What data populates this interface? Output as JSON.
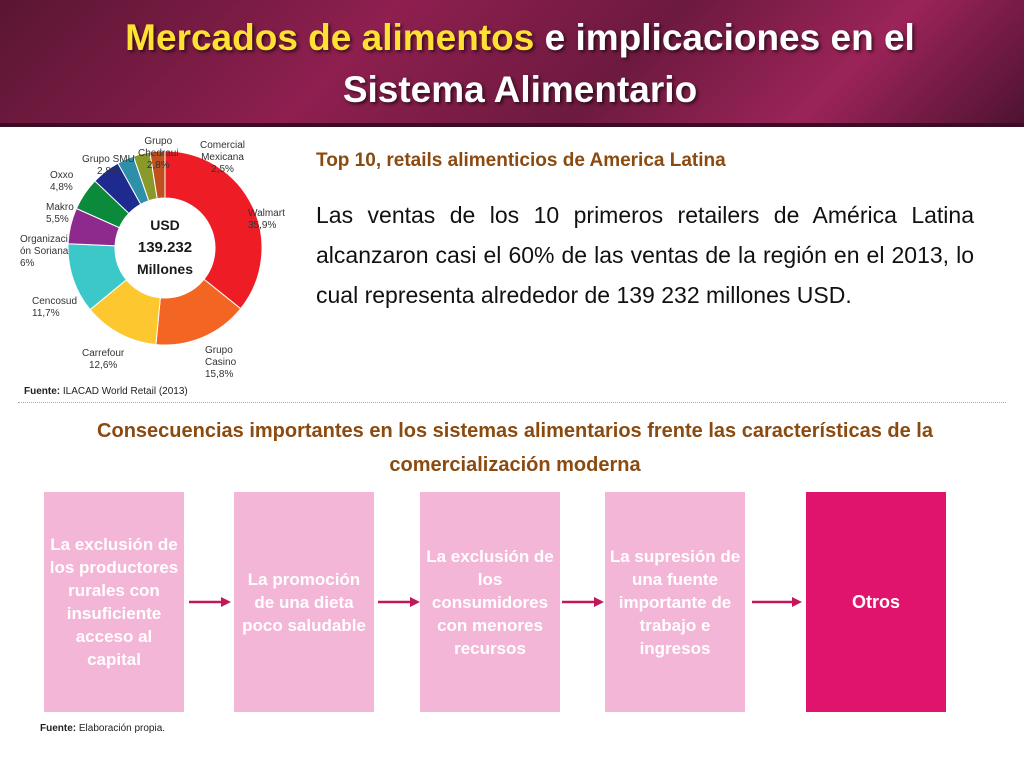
{
  "title": {
    "highlight": "Mercados de alimentos",
    "rest": " e implicaciones en el Sistema Alimentario"
  },
  "chart_data": {
    "type": "pie",
    "center_label": [
      "USD",
      "139.232",
      "Millones"
    ],
    "slices": [
      {
        "name": "Walmart",
        "value": 35.9,
        "label": "35,9%",
        "color": "#ee1c25"
      },
      {
        "name": "Grupo Casino",
        "value": 15.8,
        "label": "15,8%",
        "color": "#f26522"
      },
      {
        "name": "Carrefour",
        "value": 12.6,
        "label": "12,6%",
        "color": "#fdc82f"
      },
      {
        "name": "Cencosud",
        "value": 11.7,
        "label": "11,7%",
        "color": "#3cc8c8"
      },
      {
        "name": "Organización Soriana",
        "value": 6.0,
        "label": "6%",
        "color": "#8e2a8e"
      },
      {
        "name": "Makro",
        "value": 5.5,
        "label": "5,5%",
        "color": "#0a8a3a"
      },
      {
        "name": "Oxxo",
        "value": 4.8,
        "label": "4,8%",
        "color": "#1e2a8e"
      },
      {
        "name": "Grupo SMU",
        "value": 2.8,
        "label": "2,8%",
        "color": "#2e8fa8"
      },
      {
        "name": "Grupo Chedraui",
        "value": 2.8,
        "label": "2,8%",
        "color": "#8a9a2a"
      },
      {
        "name": "Comercial Mexicana",
        "value": 2.5,
        "label": "2,5%",
        "color": "#c0501e"
      }
    ]
  },
  "labels": {
    "walmart": [
      "Walmart",
      "35,9%"
    ],
    "casino": [
      "Grupo",
      "Casino",
      "15,8%"
    ],
    "carrefour": [
      "Carrefour",
      "12,6%"
    ],
    "cencosud": [
      "Cencosud",
      "11,7%"
    ],
    "soriana": [
      "Organizaci",
      "ón Soriana",
      "6%"
    ],
    "makro": [
      "Makro",
      "5,5%"
    ],
    "oxxo": [
      "Oxxo",
      "4,8%"
    ],
    "smu": [
      "Grupo SMU",
      "2,8%"
    ],
    "chedraui": [
      "Grupo",
      "Chedraui",
      "2,8%"
    ],
    "comercial": [
      "Comercial",
      "Mexicana",
      "2,5%"
    ]
  },
  "source1": {
    "label": "Fuente:",
    "text": " ILACAD World Retail (2013)"
  },
  "subtitle": "Top 10, retails alimenticios de America Latina",
  "paragraph": "Las ventas de los 10 primeros retailers de América Latina alcanzaron casi el 60% de las ventas de la región en el 2013, lo cual representa alrededor de 139 232 millones USD.",
  "heading2": "Consecuencias importantes en los sistemas alimentarios frente las características de la comercialización moderna",
  "flow": [
    "La exclusión de los productores rurales con insuficiente acceso al capital",
    "La promoción de una dieta poco saludable",
    "La exclusión de los consumidores con menores recursos",
    "La supresión de una fuente importante de trabajo e ingresos",
    "Otros"
  ],
  "source2": {
    "label": "Fuente:",
    "text": " Elaboración propia."
  },
  "colors": {
    "accent_text": "#8b4a10",
    "box": "#f4b6d6",
    "box_final": "#e0136d",
    "arrow": "#c2185b"
  }
}
